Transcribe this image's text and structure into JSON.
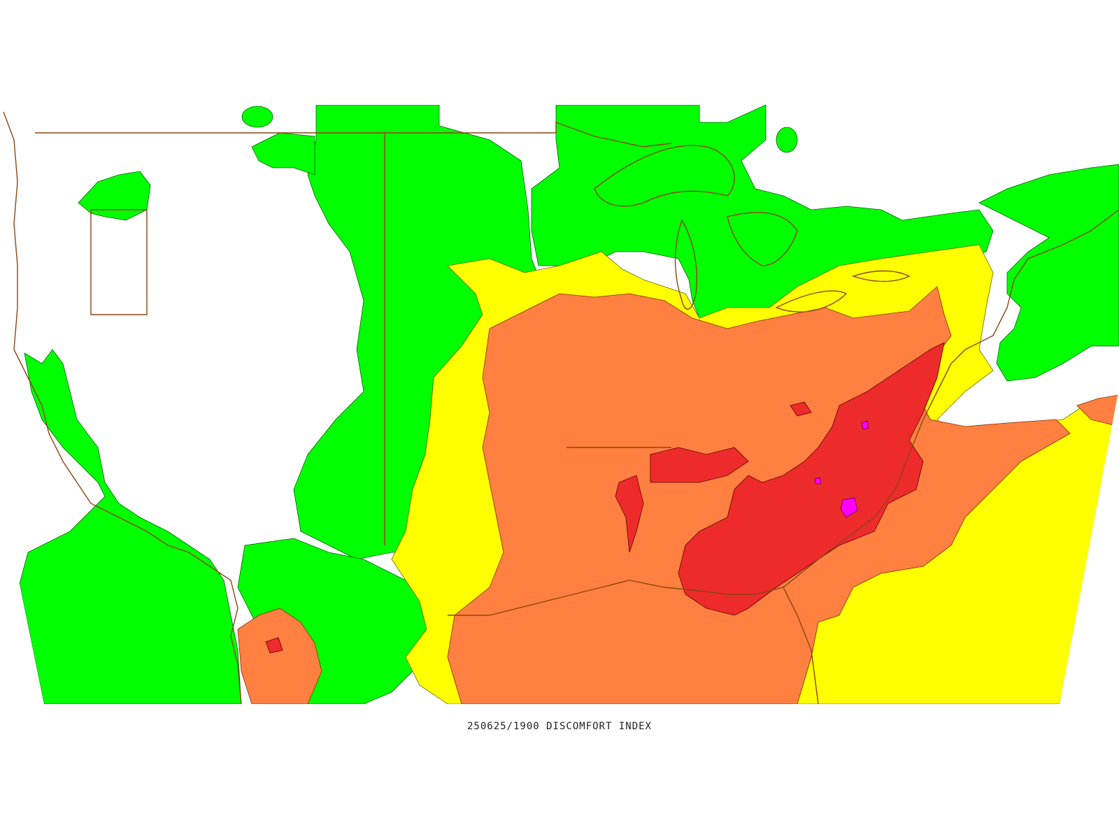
{
  "caption": "250625/1900 DISCOMFORT INDEX",
  "colors": {
    "background": "#ffffff",
    "level_green": "#00ff00",
    "level_yellow": "#ffff00",
    "level_orange": "#ff8040",
    "level_red": "#ee2b2b",
    "level_magenta": "#ff00ff",
    "boundaries": "#8b4513"
  },
  "legend_levels": [
    "green",
    "yellow",
    "orange",
    "red",
    "magenta"
  ]
}
